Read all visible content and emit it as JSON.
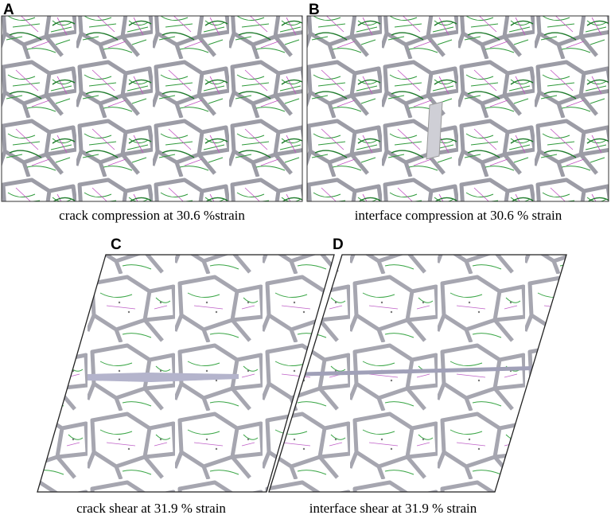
{
  "panels": [
    {
      "label": "A",
      "caption": "crack compression at 30.6 %strain"
    },
    {
      "label": "B",
      "caption": "interface compression at 30.6 % strain"
    },
    {
      "label": "C",
      "caption": "crack shear at 31.9 % strain"
    },
    {
      "label": "D",
      "caption": "interface shear at 31.9 % strain"
    }
  ]
}
